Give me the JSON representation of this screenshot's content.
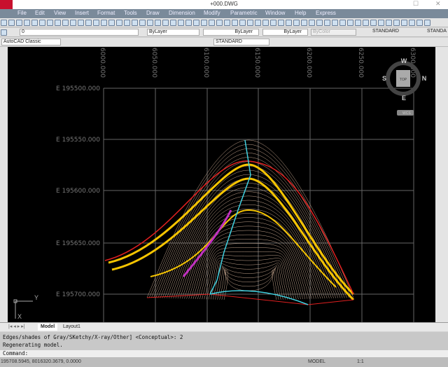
{
  "window": {
    "title": "+000.DWG"
  },
  "menu": [
    "File",
    "Edit",
    "View",
    "Insert",
    "Format",
    "Tools",
    "Draw",
    "Dimension",
    "Modify",
    "Parametric",
    "Window",
    "Help",
    "Express"
  ],
  "toolbar": {
    "layer": "0",
    "color": "ByLayer",
    "linetype": "ByLayer",
    "lineweight": "ByLayer",
    "plotstyle": "ByColor",
    "text_style": "STANDARD",
    "text_style2": "STANDA",
    "workspace": "AutoCAD Classic",
    "dim_style": "STANDARD"
  },
  "viewport": {
    "x_labels": [
      "6000.000",
      "6050.000",
      "6100.000",
      "6150.000",
      "6200.000",
      "6250.000",
      "6300.000"
    ],
    "y_labels": [
      "E 195500.000",
      "E 195550.000",
      "E 195600.000",
      "E 195650.000",
      "E 195700.000"
    ],
    "viewcube": {
      "top": "TOP",
      "n": "N",
      "s": "S",
      "e": "E",
      "w": "W",
      "ucs": "WCS"
    },
    "ucs_icon": {
      "x": "X",
      "y": "Y"
    },
    "colors": {
      "contour": "#c8a890",
      "major": "#f5c400",
      "river": "#40d0e0",
      "boundary": "#e02020",
      "path": "#c030c0"
    }
  },
  "tabs": [
    "Model",
    "Layout1"
  ],
  "command": {
    "history": [
      "Edges/shades of Gray/SKetchy/X-ray/Other] <Conceptual>: 2",
      "Regenerating model."
    ],
    "prompt": "Command:"
  },
  "status": {
    "coords": "195708.5945, 8016320.3679, 0.0000",
    "model": "MODEL",
    "scale": "1:1"
  }
}
